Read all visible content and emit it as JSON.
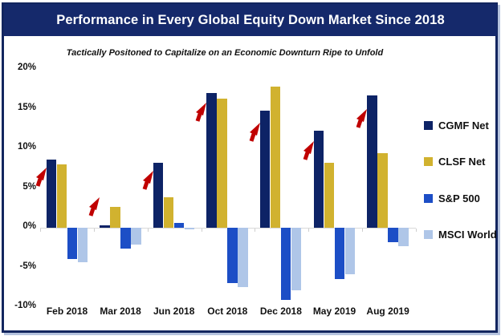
{
  "title": "Performance in Every Global Equity Down Market Since 2018",
  "subtitle": "Tactically Positoned to Capitalize on an Economic Downturn Ripe to Unfold",
  "colors": {
    "navy": "#0D2366",
    "banner_navy": "#15296B",
    "gold": "#D1B22F",
    "blue": "#1C4EC6",
    "light_blue": "#AFC6E8",
    "arrow_red": "#C00000",
    "zero_line": "#D9D9D9"
  },
  "chart_data": {
    "type": "bar",
    "title": "Performance in Every Global Equity Down Market Since 2018",
    "subtitle": "Tactically Positoned to Capitalize on an Economic Downturn Ripe to Unfold",
    "categories": [
      "Feb 2018",
      "Mar 2018",
      "Jun 2018",
      "Oct 2018",
      "Dec 2018",
      "May 2019",
      "Aug 2019"
    ],
    "series": [
      {
        "name": "CGMF Net",
        "color_key": "navy",
        "values": [
          8.6,
          0.3,
          8.2,
          17.0,
          14.7,
          12.2,
          16.7
        ]
      },
      {
        "name": "CLSF Net",
        "color_key": "gold",
        "values": [
          8.0,
          2.6,
          3.8,
          16.3,
          17.8,
          8.2,
          9.4
        ]
      },
      {
        "name": "S&P 500",
        "color_key": "blue",
        "values": [
          -3.9,
          -2.6,
          0.6,
          -7.0,
          -9.1,
          -6.5,
          -1.8
        ]
      },
      {
        "name": "MSCI World",
        "color_key": "light_blue",
        "values": [
          -4.3,
          -2.1,
          -0.2,
          -7.5,
          -7.9,
          -5.9,
          -2.3
        ]
      }
    ],
    "y_ticks": [
      "20%",
      "15%",
      "10%",
      "5%",
      "0%",
      "-5%",
      "-10%"
    ],
    "y_tick_values": [
      20,
      15,
      10,
      5,
      0,
      -5,
      -10
    ],
    "ylim": [
      -10,
      20
    ],
    "xlabel": "",
    "ylabel": "",
    "grid": false,
    "legend_position": "right",
    "annotations": {
      "description": "red up-right arrow beside the tallest fund bar of every category",
      "arrow_categories": [
        "Feb 2018",
        "Mar 2018",
        "Jun 2018",
        "Oct 2018",
        "Dec 2018",
        "May 2019",
        "Aug 2019"
      ]
    }
  }
}
